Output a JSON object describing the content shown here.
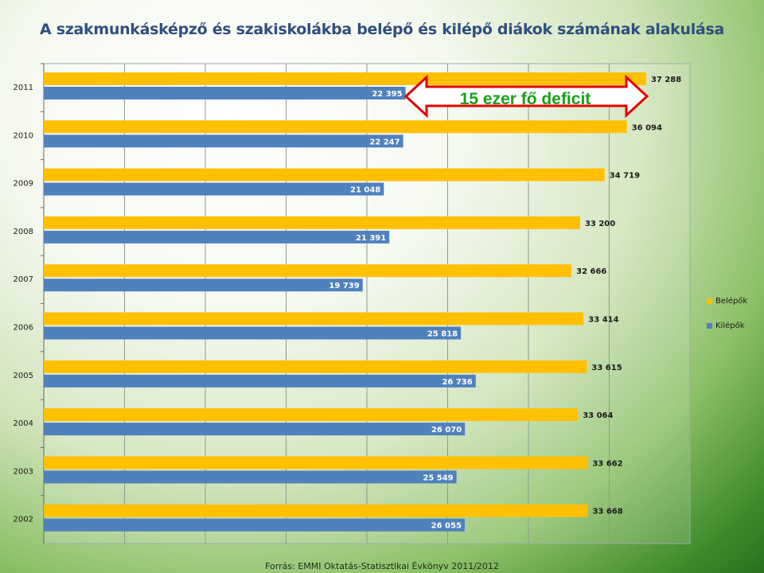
{
  "title": "A szakmunkásképző és szakiskolákba belépő és kilépő diákok számának alakulása",
  "source": "Forrás: EMMI Oktatás-Statisztikai Évkönyv 2011/2012",
  "annotation": "15 ezer fő deficit",
  "colors": {
    "belepok": "#ffc000",
    "kilepok": "#4f81bd",
    "annotation_text": "#1aa01a",
    "annotation_arrow": "#e00000"
  },
  "chart_data": {
    "type": "bar",
    "orientation": "horizontal",
    "categories": [
      "2011",
      "2010",
      "2009",
      "2008",
      "2007",
      "2006",
      "2005",
      "2004",
      "2003",
      "2002"
    ],
    "series": [
      {
        "name": "Belépők",
        "color": "#ffc000",
        "values": [
          37288,
          36094,
          34719,
          33200,
          32666,
          33414,
          33615,
          33064,
          33662,
          33668
        ],
        "labels": [
          "37 288",
          "36 094",
          "34 719",
          "33 200",
          "32 666",
          "33 414",
          "33 615",
          "33 064",
          "33 662",
          "33 668"
        ]
      },
      {
        "name": "Kilépők",
        "color": "#4f81bd",
        "values": [
          22395,
          22247,
          21048,
          21391,
          19739,
          25818,
          26736,
          26070,
          25549,
          26055
        ],
        "labels": [
          "22 395",
          "22 247",
          "21 048",
          "21 391",
          "19 739",
          "25 818",
          "26 736",
          "26 070",
          "25 549",
          "26 055"
        ]
      }
    ],
    "xlim": [
      0,
      40000
    ],
    "grid": true,
    "legend_position": "right"
  }
}
